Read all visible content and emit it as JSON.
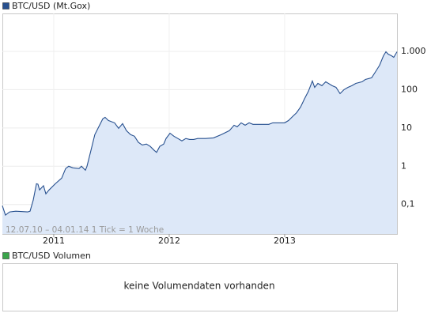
{
  "chart_data": [
    {
      "type": "line",
      "log_y": true,
      "grid": true,
      "area_fill": "#dde8f8",
      "annotation": "12.07.10 – 04.01.14   1 Tick = 1 Woche",
      "xlim": [
        2010.555,
        2013.973
      ],
      "xticks": [
        2011,
        2012,
        2013
      ],
      "ylim": [
        0.017,
        9800
      ],
      "yticks": [
        {
          "value": 1000,
          "label": "1.000"
        },
        100,
        10,
        1,
        {
          "value": 0.1,
          "label": "0,1"
        }
      ],
      "x": [
        2010.555,
        2010.582,
        2010.617,
        2010.671,
        2010.774,
        2010.795,
        2010.822,
        2010.85,
        2010.863,
        2010.877,
        2010.911,
        2010.932,
        2010.959,
        2011.014,
        2011.069,
        2011.103,
        2011.13,
        2011.165,
        2011.219,
        2011.24,
        2011.274,
        2011.288,
        2011.322,
        2011.356,
        2011.39,
        2011.425,
        2011.445,
        2011.473,
        2011.527,
        2011.562,
        2011.596,
        2011.63,
        2011.665,
        2011.699,
        2011.733,
        2011.767,
        2011.802,
        2011.836,
        2011.87,
        2011.891,
        2011.918,
        2011.952,
        2011.973,
        2012.007,
        2012.041,
        2012.075,
        2012.11,
        2012.144,
        2012.178,
        2012.212,
        2012.247,
        2012.315,
        2012.384,
        2012.452,
        2012.521,
        2012.562,
        2012.589,
        2012.623,
        2012.658,
        2012.692,
        2012.726,
        2012.795,
        2012.863,
        2012.897,
        2012.966,
        2013.0,
        2013.034,
        2013.069,
        2013.103,
        2013.137,
        2013.171,
        2013.206,
        2013.24,
        2013.26,
        2013.288,
        2013.322,
        2013.356,
        2013.411,
        2013.445,
        2013.48,
        2013.514,
        2013.548,
        2013.582,
        2013.616,
        2013.671,
        2013.699,
        2013.753,
        2013.788,
        2013.822,
        2013.856,
        2013.877,
        2013.897,
        2013.925,
        2013.945,
        2013.973
      ],
      "series": [
        {
          "name": "BTC/USD (Mt.Gox)",
          "color": "#27508f",
          "values": [
            0.093,
            0.053,
            0.064,
            0.067,
            0.064,
            0.067,
            0.13,
            0.35,
            0.34,
            0.24,
            0.31,
            0.19,
            0.24,
            0.35,
            0.49,
            0.87,
            1.0,
            0.91,
            0.87,
            1.0,
            0.79,
            1.0,
            2.6,
            6.7,
            10.7,
            17.3,
            19,
            15.7,
            13.6,
            9.8,
            13,
            8.5,
            6.7,
            6.1,
            4.2,
            3.6,
            3.8,
            3.3,
            2.6,
            2.3,
            3.3,
            3.8,
            5.3,
            7.3,
            6.1,
            5.3,
            4.6,
            5.3,
            5.0,
            5.0,
            5.3,
            5.3,
            5.5,
            6.7,
            8.5,
            11.8,
            10.7,
            13.6,
            11.8,
            13.6,
            12.4,
            12.4,
            12.4,
            13.6,
            13.6,
            13.6,
            15.7,
            19.9,
            25,
            35,
            57,
            91,
            169,
            115,
            146,
            127,
            161,
            127,
            115,
            79,
            100,
            115,
            127,
            146,
            161,
            185,
            204,
            298,
            436,
            770,
            977,
            847,
            770,
            700,
            977
          ]
        }
      ]
    },
    {
      "type": "bar",
      "annotation": "keine Volumendaten vorhanden",
      "series": [
        {
          "name": "BTC/USD Volumen",
          "color": "#3aa54a"
        }
      ]
    }
  ]
}
